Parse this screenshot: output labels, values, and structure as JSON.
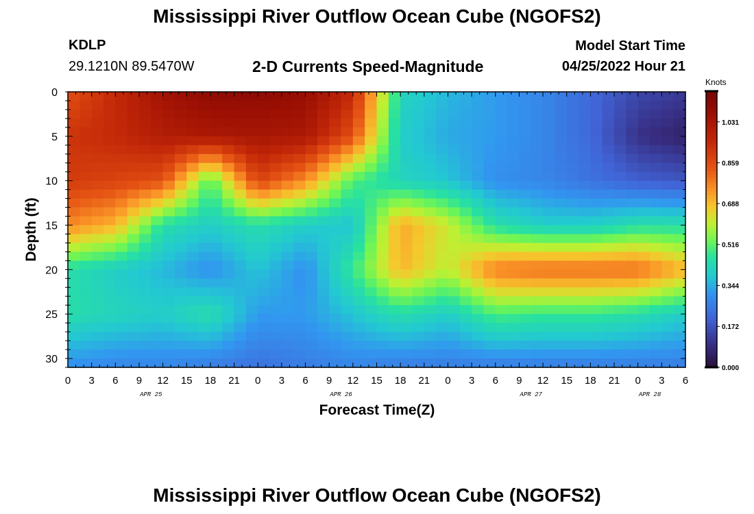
{
  "header": {
    "title": "Mississippi River Outflow Ocean Cube (NGOFS2)",
    "station_id": "KDLP",
    "station_coords": "29.1210N  89.5470W",
    "subtitle": "2-D Currents Speed-Magnitude",
    "start_time_label": "Model Start Time",
    "start_time_value": "04/25/2022 Hour 21"
  },
  "footer": {
    "title": "Mississippi River Outflow Ocean Cube (NGOFS2)"
  },
  "chart_data": {
    "type": "heatmap",
    "title": "2-D Currents Speed-Magnitude",
    "xlabel": "Forecast Time(Z)",
    "ylabel": "Depth (ft)",
    "x_tick_labels": [
      "0",
      "3",
      "6",
      "9",
      "12",
      "15",
      "18",
      "21",
      "0",
      "3",
      "6",
      "9",
      "12",
      "15",
      "18",
      "21",
      "0",
      "3",
      "6",
      "9",
      "12",
      "15",
      "18",
      "21",
      "0",
      "3",
      "6"
    ],
    "date_labels": [
      {
        "label": "APR 25",
        "hour": 10.5
      },
      {
        "label": "APR 26",
        "hour": 34.5
      },
      {
        "label": "APR 27",
        "hour": 58.5
      },
      {
        "label": "APR 28",
        "hour": 73.5
      }
    ],
    "xlim_hours": [
      0,
      78
    ],
    "ylim_ft": [
      0,
      31
    ],
    "y_ticks": [
      0,
      5,
      10,
      15,
      20,
      25,
      30
    ],
    "colorbar": {
      "unit": "Knots",
      "min": 0.0,
      "max": 1.16,
      "tick_labels": [
        "0.000",
        "0.172",
        "0.344",
        "0.516",
        "0.688",
        "0.859",
        "1.031"
      ],
      "tick_values": [
        0.0,
        0.172,
        0.344,
        0.516,
        0.688,
        0.859,
        1.031
      ]
    },
    "grid_resolution": {
      "hours_step": 1.5,
      "depth_step_ft": 1.0
    },
    "speed_field_knots": {
      "hours": [
        0,
        6,
        12,
        18,
        24,
        30,
        36,
        42,
        48,
        54,
        60,
        66,
        72,
        78
      ],
      "depths_ft": [
        0,
        5,
        10,
        15,
        20,
        25,
        31
      ],
      "rows": [
        [
          0.85,
          0.95,
          1.05,
          1.1,
          1.1,
          1.08,
          0.95,
          0.42,
          0.36,
          0.32,
          0.28,
          0.22,
          0.15,
          0.12
        ],
        [
          0.92,
          0.95,
          1.0,
          1.02,
          1.03,
          1.02,
          0.85,
          0.4,
          0.34,
          0.32,
          0.28,
          0.22,
          0.1,
          0.06
        ],
        [
          0.9,
          0.88,
          0.85,
          0.5,
          0.88,
          0.75,
          0.5,
          0.42,
          0.38,
          0.3,
          0.28,
          0.24,
          0.2,
          0.18
        ],
        [
          0.76,
          0.7,
          0.45,
          0.4,
          0.45,
          0.4,
          0.38,
          0.72,
          0.62,
          0.45,
          0.4,
          0.4,
          0.45,
          0.45
        ],
        [
          0.45,
          0.4,
          0.36,
          0.3,
          0.38,
          0.3,
          0.48,
          0.7,
          0.6,
          0.78,
          0.8,
          0.8,
          0.8,
          0.7
        ],
        [
          0.45,
          0.42,
          0.4,
          0.45,
          0.32,
          0.32,
          0.38,
          0.45,
          0.4,
          0.5,
          0.48,
          0.48,
          0.45,
          0.4
        ],
        [
          0.3,
          0.28,
          0.28,
          0.26,
          0.24,
          0.26,
          0.28,
          0.26,
          0.26,
          0.26,
          0.26,
          0.26,
          0.26,
          0.26
        ]
      ]
    }
  }
}
